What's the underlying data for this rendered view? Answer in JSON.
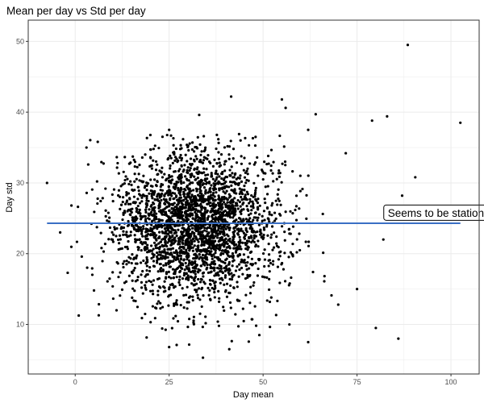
{
  "chart_data": {
    "type": "scatter",
    "title": "Mean per day vs Std per day",
    "xlabel": "Day mean",
    "ylabel": "Day std",
    "xlim": [
      -12.5,
      107.5
    ],
    "ylim": [
      3.0,
      53.0
    ],
    "xticks": [
      0,
      25,
      50,
      75,
      100
    ],
    "yticks": [
      10,
      20,
      30,
      40,
      50
    ],
    "xtick_labels": [
      "0",
      "25",
      "50",
      "75",
      "100"
    ],
    "ytick_labels": [
      "10",
      "20",
      "30",
      "40",
      "50"
    ],
    "grid": true,
    "point_color": "#000000",
    "cloud": {
      "count": 2800,
      "x_center": 32,
      "x_spread": 11,
      "y_center": 24,
      "y_spread": 5.2,
      "seed": 7
    },
    "outliers": [
      {
        "x": 88.5,
        "y": 49.5
      },
      {
        "x": 102.5,
        "y": 38.5
      },
      {
        "x": 41.5,
        "y": 42.2
      },
      {
        "x": 55,
        "y": 41.8
      },
      {
        "x": 56,
        "y": 40.6
      },
      {
        "x": 64,
        "y": 39.7
      },
      {
        "x": 83,
        "y": 39.4
      },
      {
        "x": 79,
        "y": 38.8
      },
      {
        "x": 33,
        "y": 39.6
      },
      {
        "x": 90.5,
        "y": 30.8
      },
      {
        "x": 87,
        "y": 28.2
      },
      {
        "x": 86,
        "y": 8
      },
      {
        "x": 80,
        "y": 9.5
      },
      {
        "x": 62,
        "y": 7.5
      },
      {
        "x": 25,
        "y": 6.8
      },
      {
        "x": 27,
        "y": 7.1
      },
      {
        "x": 34,
        "y": 5.3
      },
      {
        "x": 41,
        "y": 6.5
      },
      {
        "x": -7.5,
        "y": 30
      },
      {
        "x": -4,
        "y": 23
      },
      {
        "x": -2,
        "y": 17.3
      },
      {
        "x": -1,
        "y": 26.8
      },
      {
        "x": 82,
        "y": 22
      },
      {
        "x": 75,
        "y": 15
      },
      {
        "x": 70,
        "y": 12.8
      },
      {
        "x": 3,
        "y": 35
      },
      {
        "x": 6,
        "y": 35.8
      },
      {
        "x": 62,
        "y": 37.5
      },
      {
        "x": 72,
        "y": 34.2
      },
      {
        "x": 48,
        "y": 36.5
      },
      {
        "x": 44,
        "y": 36
      },
      {
        "x": 25,
        "y": 37.5
      },
      {
        "x": 5,
        "y": 14.8
      },
      {
        "x": 11,
        "y": 12
      },
      {
        "x": 57,
        "y": 10
      },
      {
        "x": 49,
        "y": 8.5
      }
    ],
    "hline": {
      "y": 24.3,
      "x_from": -7.5,
      "x_to": 102.5,
      "color": "#3a6fc4"
    },
    "annotation": {
      "text": "Seems to be stationary",
      "x": 98,
      "y": 25.8
    }
  }
}
